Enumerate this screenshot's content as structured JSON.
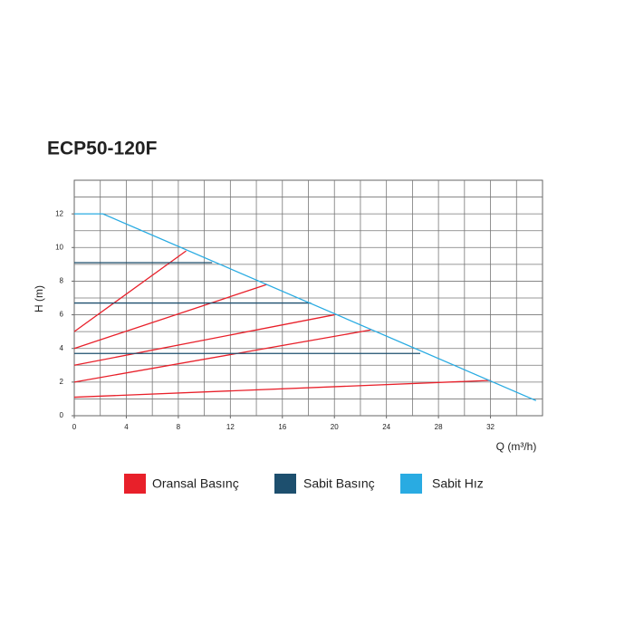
{
  "chart_data": {
    "type": "line",
    "title": "ECP50-120F",
    "x_label": "Q (m³/h)",
    "y_label": "H (m)",
    "xlim": [
      0,
      36
    ],
    "ylim": [
      0,
      14
    ],
    "xticks": [
      0,
      4,
      8,
      12,
      16,
      20,
      24,
      28,
      32
    ],
    "yticks": [
      0,
      2,
      4,
      6,
      8,
      10,
      12
    ],
    "grid": true,
    "series": [
      {
        "name": "Oransal Basınç",
        "color": "#e8202a",
        "lines": [
          {
            "x": [
              0,
              32
            ],
            "y": [
              1.1,
              2.1
            ]
          },
          {
            "x": [
              0,
              22.8
            ],
            "y": [
              2,
              5.1
            ]
          },
          {
            "x": [
              0,
              20
            ],
            "y": [
              3,
              6
            ]
          },
          {
            "x": [
              0,
              14.8
            ],
            "y": [
              4,
              7.8
            ]
          },
          {
            "x": [
              0,
              8.6
            ],
            "y": [
              5,
              9.8
            ]
          }
        ]
      },
      {
        "name": "Sabit Basınç",
        "color": "#1d4f6e",
        "lines": [
          {
            "x": [
              0,
              10.6
            ],
            "y": [
              9.1,
              9.1
            ]
          },
          {
            "x": [
              0,
              18.2
            ],
            "y": [
              6.7,
              6.7
            ]
          },
          {
            "x": [
              0,
              26.6
            ],
            "y": [
              3.7,
              3.7
            ]
          }
        ]
      },
      {
        "name": "Sabit Hız",
        "color": "#29abe2",
        "lines": [
          {
            "x": [
              0,
              2.2,
              35.5
            ],
            "y": [
              12,
              12,
              0.9
            ]
          }
        ]
      }
    ]
  }
}
